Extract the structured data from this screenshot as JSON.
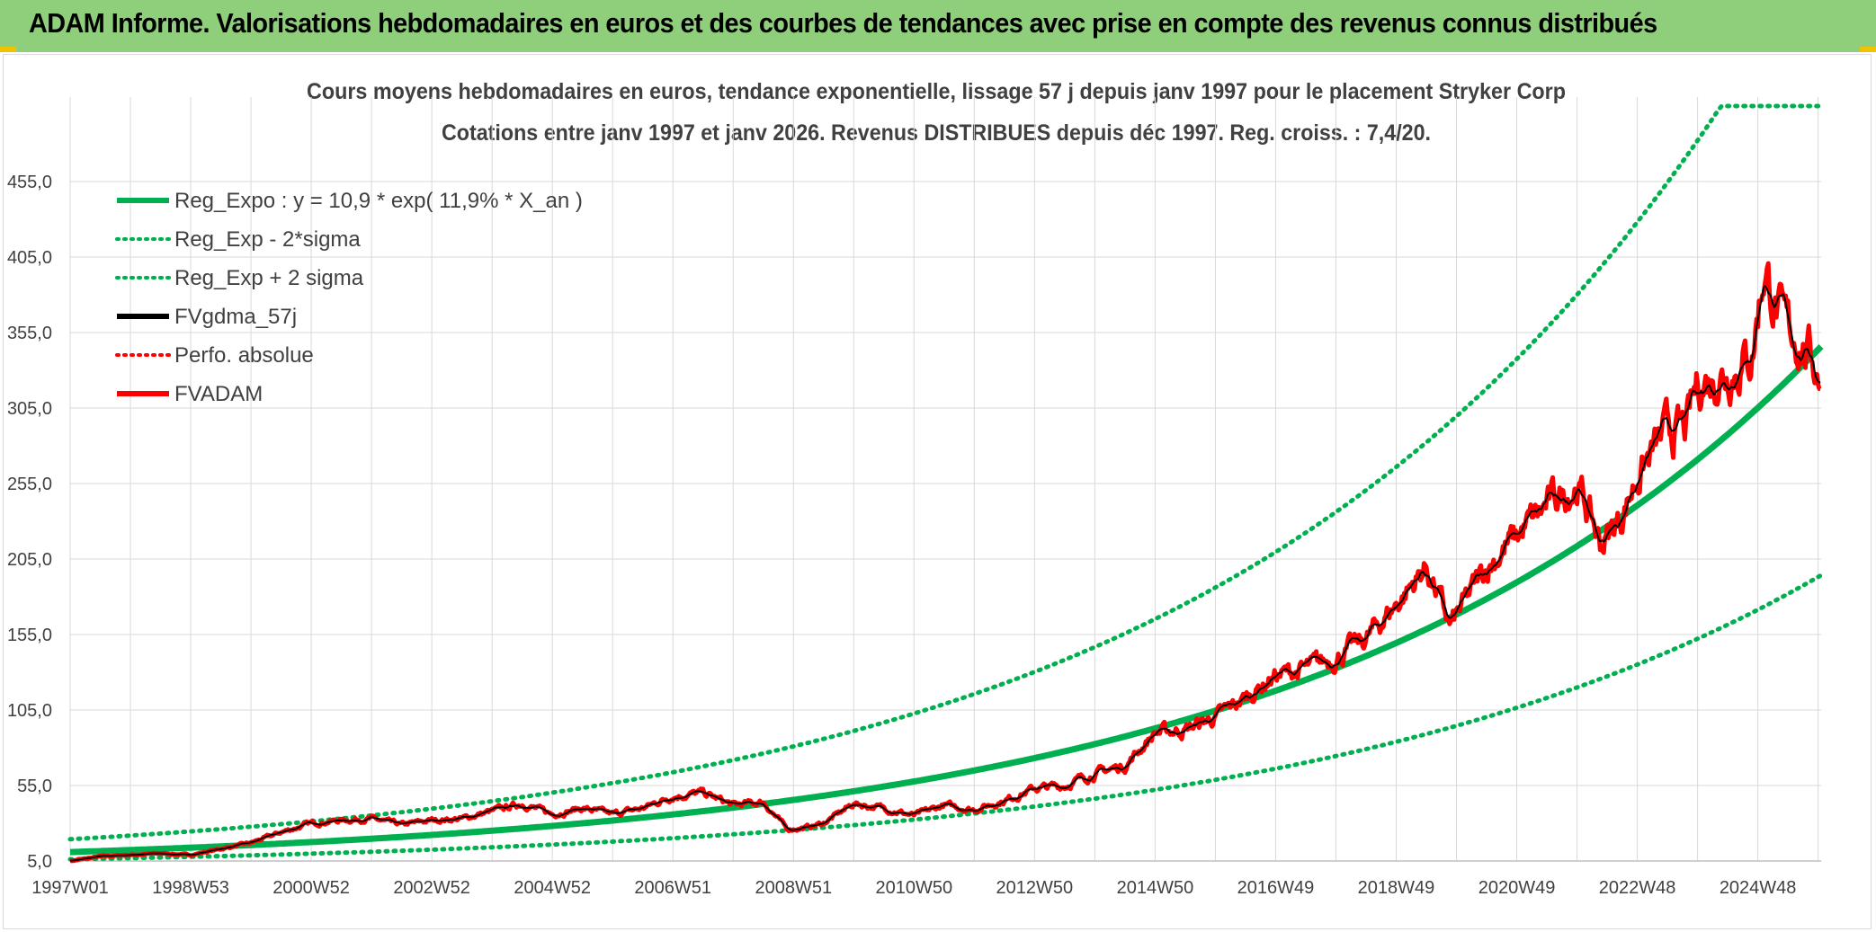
{
  "banner": {
    "title": "ADAM Informe. Valorisations hebdomadaires en euros et des courbes de tendances avec prise en compte des revenus connus distribués"
  },
  "chart_data": {
    "type": "line",
    "title": "Cours moyens hebdomadaires en euros, tendance exponentielle, lissage 57 j depuis janv 1997 pour le placement Stryker Corp",
    "subtitle": "Cotations entre janv 1997 et janv 2026. Revenus DISTRIBUES depuis déc 1997. Reg. croiss. : 7,4/20.",
    "xlabel": "",
    "ylabel": "",
    "ylim": [
      5,
      505
    ],
    "xlim": [
      1997.0,
      2026.05
    ],
    "grid": true,
    "legend_position": "top-left",
    "y_ticks": [
      "5,0",
      "55,0",
      "105,0",
      "155,0",
      "205,0",
      "255,0",
      "305,0",
      "355,0",
      "405,0",
      "455,0"
    ],
    "y_tick_values": [
      5,
      55,
      105,
      155,
      205,
      255,
      305,
      355,
      405,
      455
    ],
    "x_ticks": [
      "1997W01",
      "1998W53",
      "2000W52",
      "2002W52",
      "2004W52",
      "2006W51",
      "2008W51",
      "2010W50",
      "2012W50",
      "2014W50",
      "2016W49",
      "2018W49",
      "2020W49",
      "2022W48",
      "2024W48"
    ],
    "x_tick_values": [
      1997.0,
      1999.0,
      2001.0,
      2003.0,
      2005.0,
      2007.0,
      2009.0,
      2011.0,
      2013.0,
      2015.0,
      2017.0,
      2019.0,
      2021.0,
      2023.0,
      2025.0
    ],
    "regression": {
      "a": 10.9,
      "rate": 0.119,
      "sigma_factor": 1.78
    },
    "colors": {
      "reg": "#00b050",
      "price": "#ff0000",
      "smooth": "#000000",
      "grid": "#d9d9d9",
      "text": "#404040"
    },
    "series": [
      {
        "name": "Reg_Expo : y = 10,9 * exp( 11,9% *  X_an )",
        "style": "solid",
        "color": "#00b050"
      },
      {
        "name": "Reg_Exp - 2*sigma",
        "style": "dotted",
        "color": "#00b050"
      },
      {
        "name": "Reg_Exp + 2 sigma",
        "style": "dotted",
        "color": "#00b050"
      },
      {
        "name": "FVgdma_57j",
        "style": "solid",
        "color": "#000000"
      },
      {
        "name": "Perfo. absolue",
        "style": "dotted",
        "color": "#ff0000"
      },
      {
        "name": "FVADAM",
        "style": "solid",
        "color": "#ff0000"
      }
    ],
    "price_x": [
      1997.0,
      1997.5,
      1998.0,
      1998.5,
      1999.0,
      1999.5,
      2000.0,
      2000.5,
      2001.0,
      2001.5,
      2002.0,
      2002.5,
      2003.0,
      2003.5,
      2004.0,
      2004.5,
      2005.0,
      2005.5,
      2006.0,
      2006.5,
      2007.0,
      2007.5,
      2008.0,
      2008.5,
      2008.9,
      2009.2,
      2009.5,
      2010.0,
      2010.5,
      2011.0,
      2011.5,
      2012.0,
      2012.5,
      2013.0,
      2013.5,
      2014.0,
      2014.5,
      2015.0,
      2015.5,
      2016.0,
      2016.5,
      2017.0,
      2017.5,
      2018.0,
      2018.5,
      2019.0,
      2019.5,
      2019.9,
      2020.2,
      2020.5,
      2021.0,
      2021.5,
      2022.0,
      2022.4,
      2022.7,
      2023.0,
      2023.5,
      2023.8,
      2024.0,
      2024.5,
      2024.9,
      2025.1,
      2025.4,
      2025.7,
      2026.0
    ],
    "price_y": [
      5,
      8,
      9,
      10,
      9,
      13,
      17,
      24,
      30,
      32,
      33,
      29,
      32,
      33,
      38,
      43,
      36,
      40,
      36,
      40,
      48,
      50,
      42,
      44,
      26,
      27,
      30,
      43,
      40,
      35,
      42,
      39,
      45,
      53,
      55,
      63,
      68,
      90,
      92,
      100,
      113,
      128,
      132,
      140,
      152,
      175,
      200,
      160,
      180,
      200,
      220,
      240,
      255,
      215,
      230,
      260,
      290,
      290,
      320,
      330,
      340,
      398,
      360,
      350,
      330
    ]
  }
}
